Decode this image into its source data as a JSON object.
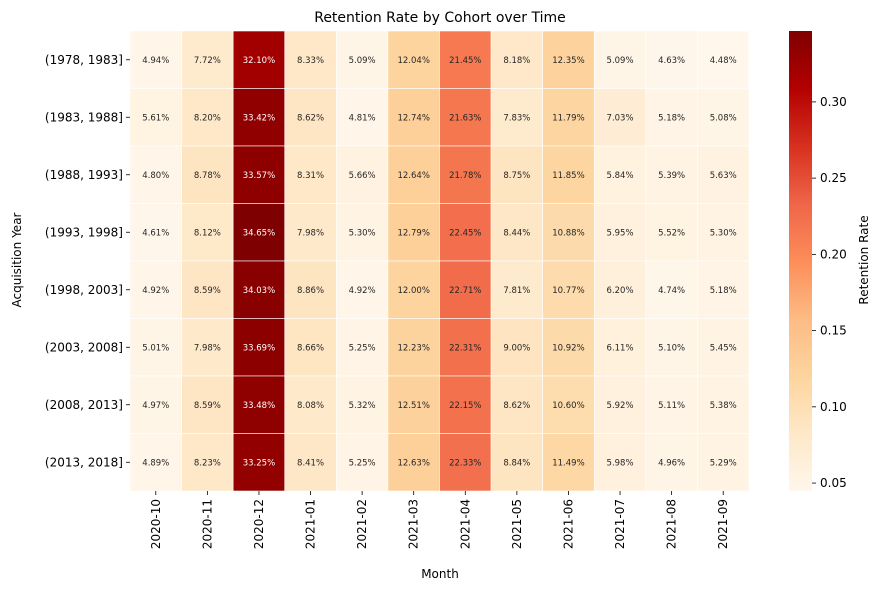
{
  "chart_data": {
    "type": "heatmap",
    "title": "Retention Rate by Cohort over Time",
    "xlabel": "Month",
    "ylabel": "Acquisition Year",
    "colorbar_label": "Retention Rate",
    "colormap": "OrRd",
    "vmin": 0.0448,
    "vmax": 0.3465,
    "colorbar_ticks": [
      "0.05",
      "0.10",
      "0.15",
      "0.20",
      "0.25",
      "0.30"
    ],
    "colorbar_tick_values": [
      0.05,
      0.1,
      0.15,
      0.2,
      0.25,
      0.3
    ],
    "x_categories": [
      "2020-10",
      "2020-11",
      "2020-12",
      "2021-01",
      "2021-02",
      "2021-03",
      "2021-04",
      "2021-05",
      "2021-06",
      "2021-07",
      "2021-08",
      "2021-09"
    ],
    "y_categories": [
      "(1978, 1983]",
      "(1983, 1988]",
      "(1988, 1993]",
      "(1993, 1998]",
      "(1998, 2003]",
      "(2003, 2008]",
      "(2008, 2013]",
      "(2013, 2018]"
    ],
    "values": [
      [
        0.0494,
        0.0772,
        0.321,
        0.0833,
        0.0509,
        0.1204,
        0.2145,
        0.0818,
        0.1235,
        0.0509,
        0.0463,
        0.0448
      ],
      [
        0.0561,
        0.082,
        0.3342,
        0.0862,
        0.0481,
        0.1274,
        0.2163,
        0.0783,
        0.1179,
        0.0703,
        0.0518,
        0.0508
      ],
      [
        0.048,
        0.0878,
        0.3357,
        0.0831,
        0.0566,
        0.1264,
        0.2178,
        0.0875,
        0.1185,
        0.0584,
        0.0539,
        0.0563
      ],
      [
        0.0461,
        0.0812,
        0.3465,
        0.0798,
        0.053,
        0.1279,
        0.2245,
        0.0844,
        0.1088,
        0.0595,
        0.0552,
        0.053
      ],
      [
        0.0492,
        0.0859,
        0.3403,
        0.0886,
        0.0492,
        0.12,
        0.2271,
        0.0781,
        0.1077,
        0.062,
        0.0474,
        0.0518
      ],
      [
        0.0501,
        0.0798,
        0.3369,
        0.0866,
        0.0525,
        0.1223,
        0.2231,
        0.09,
        0.1092,
        0.0611,
        0.051,
        0.0545
      ],
      [
        0.0497,
        0.0859,
        0.3348,
        0.0808,
        0.0532,
        0.1251,
        0.2215,
        0.0862,
        0.106,
        0.0592,
        0.0511,
        0.0538
      ],
      [
        0.0489,
        0.0823,
        0.3325,
        0.0841,
        0.0525,
        0.1263,
        0.2233,
        0.0884,
        0.1149,
        0.0598,
        0.0496,
        0.0529
      ]
    ],
    "annotation_format": "percent_2dp",
    "cell_labels": [
      [
        "4.94%",
        "7.72%",
        "32.10%",
        "8.33%",
        "5.09%",
        "12.04%",
        "21.45%",
        "8.18%",
        "12.35%",
        "5.09%",
        "4.63%",
        "4.48%"
      ],
      [
        "5.61%",
        "8.20%",
        "33.42%",
        "8.62%",
        "4.81%",
        "12.74%",
        "21.63%",
        "7.83%",
        "11.79%",
        "7.03%",
        "5.18%",
        "5.08%"
      ],
      [
        "4.80%",
        "8.78%",
        "33.57%",
        "8.31%",
        "5.66%",
        "12.64%",
        "21.78%",
        "8.75%",
        "11.85%",
        "5.84%",
        "5.39%",
        "5.63%"
      ],
      [
        "4.61%",
        "8.12%",
        "34.65%",
        "7.98%",
        "5.30%",
        "12.79%",
        "22.45%",
        "8.44%",
        "10.88%",
        "5.95%",
        "5.52%",
        "5.30%"
      ],
      [
        "4.92%",
        "8.59%",
        "34.03%",
        "8.86%",
        "4.92%",
        "12.00%",
        "22.71%",
        "7.81%",
        "10.77%",
        "6.20%",
        "4.74%",
        "5.18%"
      ],
      [
        "5.01%",
        "7.98%",
        "33.69%",
        "8.66%",
        "5.25%",
        "12.23%",
        "22.31%",
        "9.00%",
        "10.92%",
        "6.11%",
        "5.10%",
        "5.45%"
      ],
      [
        "4.97%",
        "8.59%",
        "33.48%",
        "8.08%",
        "5.32%",
        "12.51%",
        "22.15%",
        "8.62%",
        "10.60%",
        "5.92%",
        "5.11%",
        "5.38%"
      ],
      [
        "4.89%",
        "8.23%",
        "33.25%",
        "8.41%",
        "5.25%",
        "12.63%",
        "22.33%",
        "8.84%",
        "11.49%",
        "5.98%",
        "4.96%",
        "5.29%"
      ]
    ],
    "grid": false,
    "legend": "colorbar-right"
  }
}
